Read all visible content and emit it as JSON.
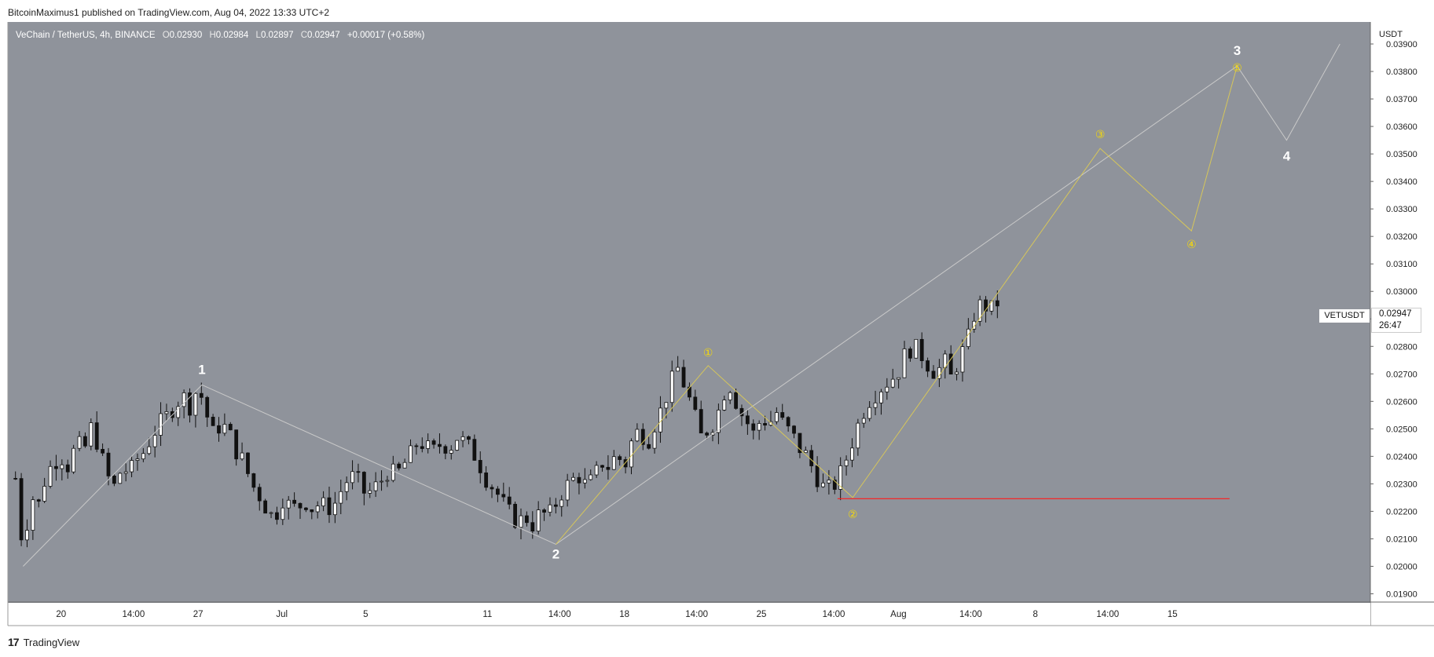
{
  "header": {
    "text": "BitcoinMaximus1 published on TradingView.com, Aug 04, 2022 13:33 UTC+2"
  },
  "footer": {
    "logo": "17",
    "brand": "TradingView"
  },
  "legend": {
    "symbol": "VeChain / TetherUS, 4h, BINANCE",
    "o_label": "O",
    "o": "0.02930",
    "h_label": "H",
    "h": "0.02984",
    "l_label": "L",
    "l": "0.02897",
    "c_label": "C",
    "c": "0.02947",
    "change": "+0.00017 (+0.58%)"
  },
  "price_tag": {
    "symbol": "VETUSDT",
    "price": "0.02947",
    "countdown": "26:47"
  },
  "colors": {
    "bg": "#8f939b",
    "wave": "#c9c9c9",
    "sub": "#d6c65a",
    "support": "#ff1a1a",
    "label": "#ffffff",
    "sublabel": "#f5d90a"
  },
  "chart_data": {
    "type": "candlestick",
    "title": "VeChain / TetherUS, 4h, BINANCE",
    "currency_label": "USDT",
    "y_ticks": [
      "0.03900",
      "0.03800",
      "0.03700",
      "0.03600",
      "0.03500",
      "0.03400",
      "0.03300",
      "0.03200",
      "0.03100",
      "0.03000",
      "0.02900",
      "0.02800",
      "0.02700",
      "0.02600",
      "0.02500",
      "0.02400",
      "0.02300",
      "0.02200",
      "0.02100",
      "0.02000",
      "0.01900"
    ],
    "ylim": [
      0.0187,
      0.0398
    ],
    "x_ticks": [
      {
        "label": "20",
        "t": 6
      },
      {
        "label": "14:00",
        "t": 15.5
      },
      {
        "label": "27",
        "t": 24
      },
      {
        "label": "Jul",
        "t": 35
      },
      {
        "label": "5",
        "t": 46
      },
      {
        "label": "11",
        "t": 62
      },
      {
        "label": "14:00",
        "t": 71.5
      },
      {
        "label": "18",
        "t": 80
      },
      {
        "label": "14:00",
        "t": 89.5
      },
      {
        "label": "25",
        "t": 98
      },
      {
        "label": "14:00",
        "t": 107.5
      },
      {
        "label": "Aug",
        "t": 116
      },
      {
        "label": "14:00",
        "t": 125.5
      },
      {
        "label": "8",
        "t": 134
      },
      {
        "label": "14:00",
        "t": 143.5
      },
      {
        "label": "15",
        "t": 152
      }
    ],
    "price_path": [
      [
        0,
        0.0232
      ],
      [
        1,
        0.0205
      ],
      [
        2,
        0.0226
      ],
      [
        3,
        0.0222
      ],
      [
        4,
        0.0233
      ],
      [
        5,
        0.0238
      ],
      [
        6,
        0.024
      ],
      [
        7,
        0.0236
      ],
      [
        8,
        0.0245
      ],
      [
        9,
        0.0242
      ],
      [
        10,
        0.0251
      ],
      [
        11,
        0.0243
      ],
      [
        12,
        0.0233
      ],
      [
        13,
        0.0229
      ],
      [
        14,
        0.0236
      ],
      [
        15,
        0.0234
      ],
      [
        16,
        0.0239
      ],
      [
        17,
        0.0242
      ],
      [
        18,
        0.0248
      ],
      [
        19,
        0.0252
      ],
      [
        20,
        0.0255
      ],
      [
        21,
        0.0259
      ],
      [
        22,
        0.0262
      ],
      [
        23,
        0.0258
      ],
      [
        24,
        0.0266
      ],
      [
        25,
        0.0256
      ],
      [
        26,
        0.0248
      ],
      [
        27,
        0.0252
      ],
      [
        28,
        0.0249
      ],
      [
        29,
        0.0242
      ],
      [
        30,
        0.0238
      ],
      [
        31,
        0.023
      ],
      [
        32,
        0.0226
      ],
      [
        33,
        0.0221
      ],
      [
        34,
        0.0217
      ],
      [
        35,
        0.0225
      ],
      [
        36,
        0.0222
      ],
      [
        37,
        0.0221
      ],
      [
        38,
        0.0224
      ],
      [
        39,
        0.0221
      ],
      [
        40,
        0.0223
      ],
      [
        41,
        0.0221
      ],
      [
        42,
        0.0223
      ],
      [
        43,
        0.0229
      ],
      [
        44,
        0.0233
      ],
      [
        45,
        0.0231
      ],
      [
        46,
        0.0226
      ],
      [
        47,
        0.0228
      ],
      [
        48,
        0.0231
      ],
      [
        49,
        0.0235
      ],
      [
        50,
        0.0233
      ],
      [
        51,
        0.0237
      ],
      [
        52,
        0.0241
      ],
      [
        53,
        0.0246
      ],
      [
        54,
        0.0243
      ],
      [
        55,
        0.0242
      ],
      [
        56,
        0.0245
      ],
      [
        57,
        0.0243
      ],
      [
        58,
        0.0247
      ],
      [
        59,
        0.0245
      ],
      [
        60,
        0.0242
      ],
      [
        61,
        0.0237
      ],
      [
        62,
        0.0231
      ],
      [
        63,
        0.0228
      ],
      [
        64,
        0.0223
      ],
      [
        65,
        0.0219
      ],
      [
        66,
        0.0216
      ],
      [
        67,
        0.0218
      ],
      [
        68,
        0.0215
      ],
      [
        69,
        0.022
      ],
      [
        70,
        0.0218
      ],
      [
        71,
        0.0223
      ],
      [
        72,
        0.0228
      ],
      [
        73,
        0.0231
      ],
      [
        74,
        0.0233
      ],
      [
        75,
        0.0229
      ],
      [
        76,
        0.0232
      ],
      [
        77,
        0.0238
      ],
      [
        78,
        0.0236
      ],
      [
        79,
        0.0241
      ],
      [
        80,
        0.0236
      ],
      [
        81,
        0.0246
      ],
      [
        82,
        0.025
      ],
      [
        83,
        0.0245
      ],
      [
        84,
        0.0252
      ],
      [
        85,
        0.0258
      ],
      [
        86,
        0.0266
      ],
      [
        87,
        0.0272
      ],
      [
        88,
        0.0265
      ],
      [
        89,
        0.0257
      ],
      [
        90,
        0.0247
      ],
      [
        91,
        0.025
      ],
      [
        92,
        0.0253
      ],
      [
        93,
        0.0263
      ],
      [
        94,
        0.0266
      ],
      [
        95,
        0.0257
      ],
      [
        96,
        0.0253
      ],
      [
        97,
        0.0248
      ],
      [
        98,
        0.0254
      ],
      [
        99,
        0.0252
      ],
      [
        100,
        0.0256
      ],
      [
        101,
        0.0251
      ],
      [
        102,
        0.0248
      ],
      [
        103,
        0.0243
      ],
      [
        104,
        0.024
      ],
      [
        105,
        0.0234
      ],
      [
        106,
        0.0229
      ],
      [
        107,
        0.0228
      ],
      [
        108,
        0.0231
      ],
      [
        109,
        0.0238
      ],
      [
        110,
        0.0246
      ],
      [
        111,
        0.0254
      ],
      [
        112,
        0.026
      ],
      [
        113,
        0.0263
      ],
      [
        114,
        0.0266
      ],
      [
        115,
        0.0268
      ],
      [
        116,
        0.0271
      ],
      [
        117,
        0.0278
      ],
      [
        118,
        0.028
      ],
      [
        119,
        0.0277
      ],
      [
        120,
        0.0273
      ],
      [
        121,
        0.027
      ],
      [
        122,
        0.0275
      ],
      [
        123,
        0.0268
      ],
      [
        124,
        0.0276
      ],
      [
        125,
        0.0281
      ],
      [
        126,
        0.0292
      ],
      [
        127,
        0.0296
      ],
      [
        128,
        0.0293
      ],
      [
        129,
        0.0295
      ]
    ],
    "candle_count": 170,
    "last_price": 0.02947,
    "support_level": 0.02246,
    "main_wave": [
      {
        "label": "",
        "t": 1,
        "y": 0.02
      },
      {
        "label": "1",
        "t": 24.5,
        "y": 0.0266
      },
      {
        "label": "2",
        "t": 71,
        "y": 0.0208
      },
      {
        "label": "3",
        "t": 160.5,
        "y": 0.0382
      },
      {
        "label": "4",
        "t": 167,
        "y": 0.0355
      },
      {
        "label": "",
        "t": 174,
        "y": 0.039
      }
    ],
    "sub_wave": [
      {
        "label": "",
        "t": 71,
        "y": 0.0208
      },
      {
        "label": "1",
        "t": 91,
        "y": 0.0273
      },
      {
        "label": "2",
        "t": 110,
        "y": 0.0225
      },
      {
        "label": "3",
        "t": 142.5,
        "y": 0.0352
      },
      {
        "label": "4",
        "t": 154.5,
        "y": 0.0322
      },
      {
        "label": "5",
        "t": 160.5,
        "y": 0.0382
      }
    ],
    "sub_wave_glyphs": [
      "①",
      "②",
      "③",
      "④",
      "⑤"
    ]
  }
}
